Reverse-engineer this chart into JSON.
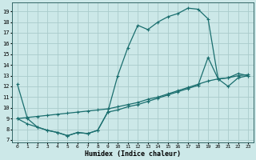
{
  "xlabel": "Humidex (Indice chaleur)",
  "background_color": "#cce8e8",
  "grid_color": "#aacccc",
  "line_color": "#1a6e6e",
  "xlim": [
    -0.5,
    23.5
  ],
  "ylim": [
    6.8,
    19.8
  ],
  "xticks": [
    0,
    1,
    2,
    3,
    4,
    5,
    6,
    7,
    8,
    9,
    10,
    11,
    12,
    13,
    14,
    15,
    16,
    17,
    18,
    19,
    20,
    21,
    22,
    23
  ],
  "yticks": [
    7,
    8,
    9,
    10,
    11,
    12,
    13,
    14,
    15,
    16,
    17,
    18,
    19
  ],
  "curve1_x": [
    0,
    1,
    2,
    3,
    4,
    5,
    6,
    7,
    8,
    9,
    10,
    11,
    12,
    13,
    14,
    15,
    16,
    17,
    18,
    19,
    20,
    21,
    22,
    23
  ],
  "curve1_y": [
    12.2,
    9.0,
    8.2,
    7.9,
    7.7,
    7.4,
    7.7,
    7.6,
    7.9,
    9.6,
    13.0,
    15.6,
    17.7,
    17.3,
    18.0,
    18.5,
    18.8,
    19.3,
    19.2,
    18.3,
    12.7,
    12.8,
    13.2,
    13.0
  ],
  "curve2_x": [
    0,
    1,
    2,
    3,
    4,
    5,
    6,
    7,
    8,
    9,
    10,
    11,
    12,
    13,
    14,
    15,
    16,
    17,
    18,
    19,
    20,
    21,
    22,
    23
  ],
  "curve2_y": [
    9.0,
    9.1,
    9.2,
    9.3,
    9.4,
    9.5,
    9.6,
    9.7,
    9.8,
    9.9,
    10.1,
    10.3,
    10.5,
    10.8,
    11.0,
    11.3,
    11.6,
    11.9,
    12.2,
    12.5,
    12.7,
    12.8,
    13.0,
    13.1
  ],
  "curve3_x": [
    0,
    1,
    2,
    3,
    4,
    5,
    6,
    7,
    8,
    9,
    10,
    11,
    12,
    13,
    14,
    15,
    16,
    17,
    18,
    19,
    20,
    21,
    22,
    23
  ],
  "curve3_y": [
    9.0,
    8.5,
    8.2,
    7.9,
    7.7,
    7.4,
    7.7,
    7.6,
    7.9,
    9.6,
    9.8,
    10.1,
    10.3,
    10.6,
    10.9,
    11.2,
    11.5,
    11.8,
    12.1,
    14.7,
    12.7,
    12.0,
    12.8,
    13.0
  ]
}
